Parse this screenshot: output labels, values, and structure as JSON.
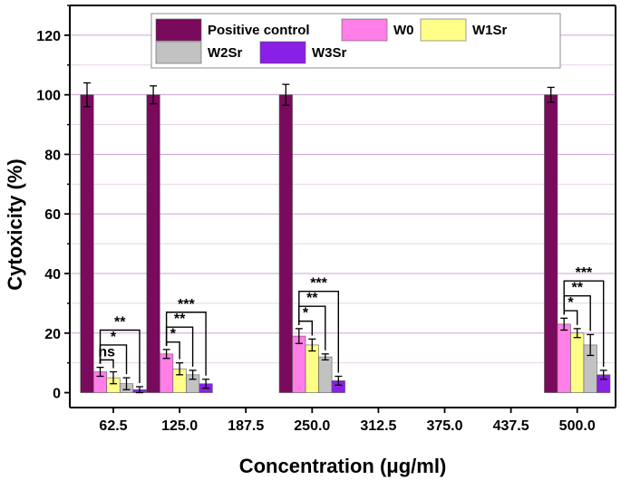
{
  "chart_data": {
    "type": "bar",
    "xlabel": "Concentration (μg/ml)",
    "ylabel": "Cytoxicity (%)",
    "ylim": [
      -5,
      130
    ],
    "yticks": [
      0,
      20,
      40,
      60,
      80,
      100,
      120
    ],
    "categories": [
      "62.5",
      "125.0",
      "187.5",
      "250.0",
      "312.5",
      "375.0",
      "437.5",
      "500.0"
    ],
    "series": [
      {
        "name": "Positive control",
        "color": "#7a0a5c",
        "values": [
          100,
          100,
          null,
          100,
          null,
          null,
          null,
          100
        ],
        "errors": [
          4,
          3,
          null,
          3.5,
          null,
          null,
          null,
          2.5
        ]
      },
      {
        "name": "W0",
        "color": "#ff7ee8",
        "values": [
          7,
          13,
          null,
          19,
          null,
          null,
          null,
          23
        ],
        "errors": [
          1.5,
          1.5,
          null,
          2.5,
          null,
          null,
          null,
          2
        ]
      },
      {
        "name": "W1Sr",
        "color": "#ffff88",
        "values": [
          5,
          8,
          null,
          16,
          null,
          null,
          null,
          20
        ],
        "errors": [
          2,
          2,
          null,
          2,
          null,
          null,
          null,
          1.5
        ]
      },
      {
        "name": "W2Sr",
        "color": "#c2c2c2",
        "values": [
          3,
          6,
          null,
          12,
          null,
          null,
          null,
          16
        ],
        "errors": [
          2,
          1.5,
          null,
          1,
          null,
          null,
          null,
          3.5
        ]
      },
      {
        "name": "W3Sr",
        "color": "#8a1fe6",
        "values": [
          1,
          3,
          null,
          4,
          null,
          null,
          null,
          6
        ],
        "errors": [
          1,
          1.5,
          null,
          1.5,
          null,
          null,
          null,
          1.5
        ]
      }
    ],
    "significance": [
      {
        "category": "62.5",
        "comparisons": [
          {
            "to": "W1Sr",
            "label": "ns"
          },
          {
            "to": "W2Sr",
            "label": "*"
          },
          {
            "to": "W3Sr",
            "label": "**"
          }
        ]
      },
      {
        "category": "125.0",
        "comparisons": [
          {
            "to": "W1Sr",
            "label": "*"
          },
          {
            "to": "W2Sr",
            "label": "**"
          },
          {
            "to": "W3Sr",
            "label": "***"
          }
        ]
      },
      {
        "category": "250.0",
        "comparisons": [
          {
            "to": "W1Sr",
            "label": "*"
          },
          {
            "to": "W2Sr",
            "label": "**"
          },
          {
            "to": "W3Sr",
            "label": "***"
          }
        ]
      },
      {
        "category": "500.0",
        "comparisons": [
          {
            "to": "W1Sr",
            "label": "*"
          },
          {
            "to": "W2Sr",
            "label": "**"
          },
          {
            "to": "W3Sr",
            "label": "***"
          }
        ]
      }
    ],
    "legend": {
      "position": "top-center"
    },
    "grid": true
  }
}
